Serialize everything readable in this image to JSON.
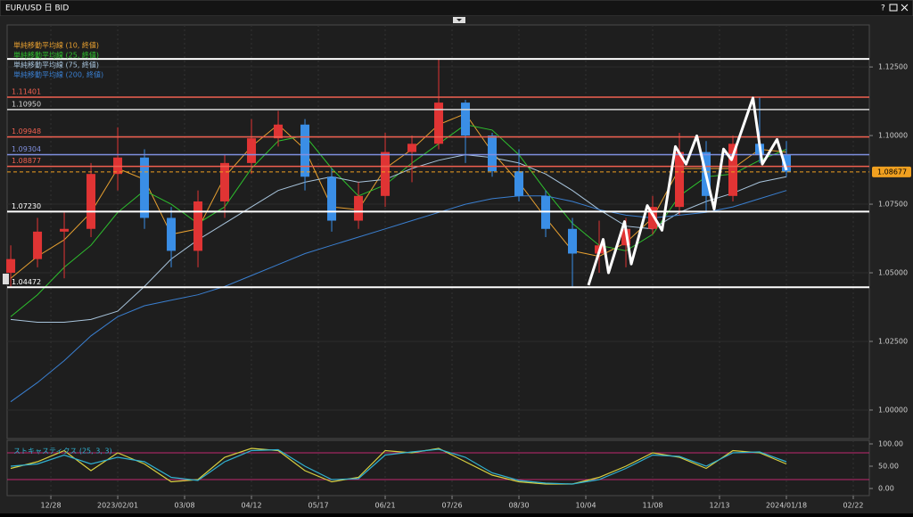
{
  "window": {
    "help": "?"
  },
  "chart_data": [
    {
      "type": "candlestick",
      "title": "EUR/USD 日 BID",
      "x": [
        0,
        2,
        4,
        6,
        8,
        10,
        12,
        14,
        16,
        18,
        20,
        22,
        24,
        26,
        28,
        30,
        32,
        34,
        36,
        38,
        40,
        42,
        44,
        46,
        48,
        50,
        52,
        54,
        56,
        58
      ],
      "open": [
        1.05,
        1.055,
        1.065,
        1.066,
        1.086,
        1.092,
        1.07,
        1.058,
        1.076,
        1.09,
        1.099,
        1.104,
        1.085,
        1.069,
        1.078,
        1.094,
        1.097,
        1.112,
        1.1,
        1.087,
        1.078,
        1.066,
        1.057,
        1.06,
        1.066,
        1.074,
        1.094,
        1.078,
        1.097,
        1.093
      ],
      "high": [
        1.06,
        1.07,
        1.072,
        1.09,
        1.103,
        1.095,
        1.074,
        1.08,
        1.093,
        1.106,
        1.109,
        1.106,
        1.088,
        1.083,
        1.101,
        1.1,
        1.128,
        1.113,
        1.101,
        1.095,
        1.08,
        1.07,
        1.069,
        1.07,
        1.078,
        1.101,
        1.098,
        1.1,
        1.114,
        1.098
      ],
      "low": [
        1.045,
        1.052,
        1.048,
        1.063,
        1.08,
        1.066,
        1.052,
        1.052,
        1.07,
        1.086,
        1.096,
        1.08,
        1.065,
        1.066,
        1.074,
        1.083,
        1.095,
        1.09,
        1.085,
        1.076,
        1.063,
        1.045,
        1.05,
        1.052,
        1.064,
        1.071,
        1.072,
        1.076,
        1.09,
        1.085
      ],
      "close": [
        1.055,
        1.065,
        1.066,
        1.086,
        1.092,
        1.07,
        1.058,
        1.076,
        1.09,
        1.099,
        1.104,
        1.085,
        1.069,
        1.078,
        1.094,
        1.097,
        1.112,
        1.1,
        1.087,
        1.078,
        1.066,
        1.057,
        1.06,
        1.066,
        1.074,
        1.094,
        1.078,
        1.097,
        1.093,
        1.0868
      ],
      "up_color": "#e03434",
      "down_color": "#3a8ee6",
      "series": [
        {
          "name": "単純移動平均線 (10, 終値)",
          "color": "#e8a030",
          "values": [
            1.048,
            1.056,
            1.062,
            1.072,
            1.088,
            1.084,
            1.064,
            1.066,
            1.085,
            1.096,
            1.104,
            1.095,
            1.074,
            1.073,
            1.088,
            1.095,
            1.104,
            1.108,
            1.094,
            1.083,
            1.07,
            1.058,
            1.056,
            1.061,
            1.07,
            1.088,
            1.088,
            1.088,
            1.095,
            1.094
          ]
        },
        {
          "name": "単純移動平均線 (25, 終値)",
          "color": "#2ec12e",
          "values": [
            1.034,
            1.042,
            1.052,
            1.06,
            1.072,
            1.08,
            1.075,
            1.068,
            1.074,
            1.088,
            1.098,
            1.1,
            1.088,
            1.078,
            1.082,
            1.09,
            1.097,
            1.104,
            1.102,
            1.093,
            1.08,
            1.068,
            1.06,
            1.058,
            1.064,
            1.078,
            1.085,
            1.086,
            1.091,
            1.095
          ]
        },
        {
          "name": "単純移動平均線 (75, 終値)",
          "color": "#a8c4dc",
          "values": [
            1.033,
            1.032,
            1.032,
            1.033,
            1.036,
            1.045,
            1.055,
            1.062,
            1.068,
            1.074,
            1.08,
            1.083,
            1.085,
            1.083,
            1.084,
            1.088,
            1.091,
            1.093,
            1.092,
            1.09,
            1.086,
            1.08,
            1.073,
            1.067,
            1.066,
            1.072,
            1.076,
            1.079,
            1.083,
            1.085
          ]
        },
        {
          "name": "単純移動平均線 (200, 終値)",
          "color": "#3a7fd0",
          "values": [
            1.003,
            1.01,
            1.018,
            1.027,
            1.034,
            1.038,
            1.04,
            1.042,
            1.045,
            1.049,
            1.053,
            1.057,
            1.06,
            1.063,
            1.066,
            1.069,
            1.072,
            1.075,
            1.077,
            1.078,
            1.078,
            1.076,
            1.073,
            1.071,
            1.07,
            1.071,
            1.072,
            1.074,
            1.077,
            1.08
          ]
        }
      ],
      "hlines": [
        {
          "value": 1.1279,
          "color": "#ffffff"
        },
        {
          "value": 1.11401,
          "label": "1.11401",
          "color": "#f06050"
        },
        {
          "value": 1.1095,
          "label": "1.10950",
          "color": "#d8d8d8"
        },
        {
          "value": 1.09948,
          "label": "1.09948",
          "color": "#f06050"
        },
        {
          "value": 1.09304,
          "label": "1.09304",
          "color": "#8090e0"
        },
        {
          "value": 1.08877,
          "label": "1.08877",
          "color": "#f06050"
        },
        {
          "value": 1.0723,
          "label": "1.07230",
          "color": "#ffffff"
        },
        {
          "value": 1.04472,
          "label": "1.04472",
          "color": "#ffffff"
        }
      ],
      "last_price": {
        "value": 1.08677,
        "label": "1.08677",
        "color": "#f0a020"
      },
      "drawing": {
        "color": "#ffffff",
        "x": [
          43.2,
          44.3,
          44.7,
          45.9,
          46.4,
          47.6,
          48.7,
          49.7,
          50.5,
          51.3,
          52.6,
          53.3,
          53.9,
          55.5,
          56.2,
          57.3,
          58.0
        ],
        "y": [
          1.0455,
          1.0622,
          1.05,
          1.0687,
          1.0532,
          1.0745,
          1.0655,
          1.096,
          1.0896,
          1.0999,
          1.0732,
          1.0951,
          1.0912,
          1.1137,
          1.0896,
          1.0986,
          1.0874
        ]
      },
      "xlim": [
        -0.27,
        64.2
      ],
      "ylim": [
        0.9896,
        1.1403
      ],
      "yticks": [
        {
          "value": 1.0,
          "label": "1.00000"
        },
        {
          "value": 1.025,
          "label": "1.02500"
        },
        {
          "value": 1.05,
          "label": "1.05000"
        },
        {
          "value": 1.075,
          "label": "1.07500"
        },
        {
          "value": 1.1,
          "label": "1.10000"
        },
        {
          "value": 1.125,
          "label": "1.12500"
        }
      ]
    },
    {
      "type": "line",
      "title": "ストキャスティクス (25, 3, 3)",
      "x": [
        0,
        2,
        4,
        6,
        8,
        10,
        12,
        14,
        16,
        18,
        20,
        22,
        24,
        26,
        28,
        30,
        32,
        34,
        36,
        38,
        40,
        42,
        44,
        46,
        48,
        50,
        52,
        54,
        56,
        58
      ],
      "series": [
        {
          "color": "#d8d040",
          "values": [
            45,
            60,
            85,
            40,
            80,
            55,
            15,
            20,
            70,
            90,
            85,
            40,
            15,
            25,
            85,
            80,
            90,
            60,
            30,
            15,
            10,
            10,
            25,
            50,
            80,
            70,
            45,
            85,
            80,
            55
          ]
        },
        {
          "color": "#30b0d0",
          "values": [
            50,
            55,
            75,
            55,
            70,
            60,
            25,
            18,
            60,
            85,
            87,
            50,
            20,
            22,
            75,
            82,
            88,
            70,
            35,
            18,
            12,
            10,
            20,
            45,
            75,
            72,
            50,
            80,
            82,
            60
          ]
        }
      ],
      "levels": [
        80,
        20
      ],
      "level_color": "#c02870",
      "xlim": [
        -0.27,
        64.2
      ],
      "ylim": [
        -16,
        108
      ],
      "yticks": [
        {
          "value": 100,
          "label": "100.00"
        },
        {
          "value": 50,
          "label": "50.00"
        },
        {
          "value": 0,
          "label": "0.00"
        }
      ],
      "xticks": [
        {
          "value": 3,
          "label": "12/28"
        },
        {
          "value": 8,
          "label": "2023/02/01"
        },
        {
          "value": 13,
          "label": "03/08"
        },
        {
          "value": 18,
          "label": "04/12"
        },
        {
          "value": 23,
          "label": "05/17"
        },
        {
          "value": 28,
          "label": "06/21"
        },
        {
          "value": 33,
          "label": "07/26"
        },
        {
          "value": 38,
          "label": "08/30"
        },
        {
          "value": 43,
          "label": "10/04"
        },
        {
          "value": 48,
          "label": "11/08"
        },
        {
          "value": 53,
          "label": "12/13"
        },
        {
          "value": 58,
          "label": "2024/01/18"
        },
        {
          "value": 63,
          "label": "02/22"
        }
      ]
    }
  ]
}
